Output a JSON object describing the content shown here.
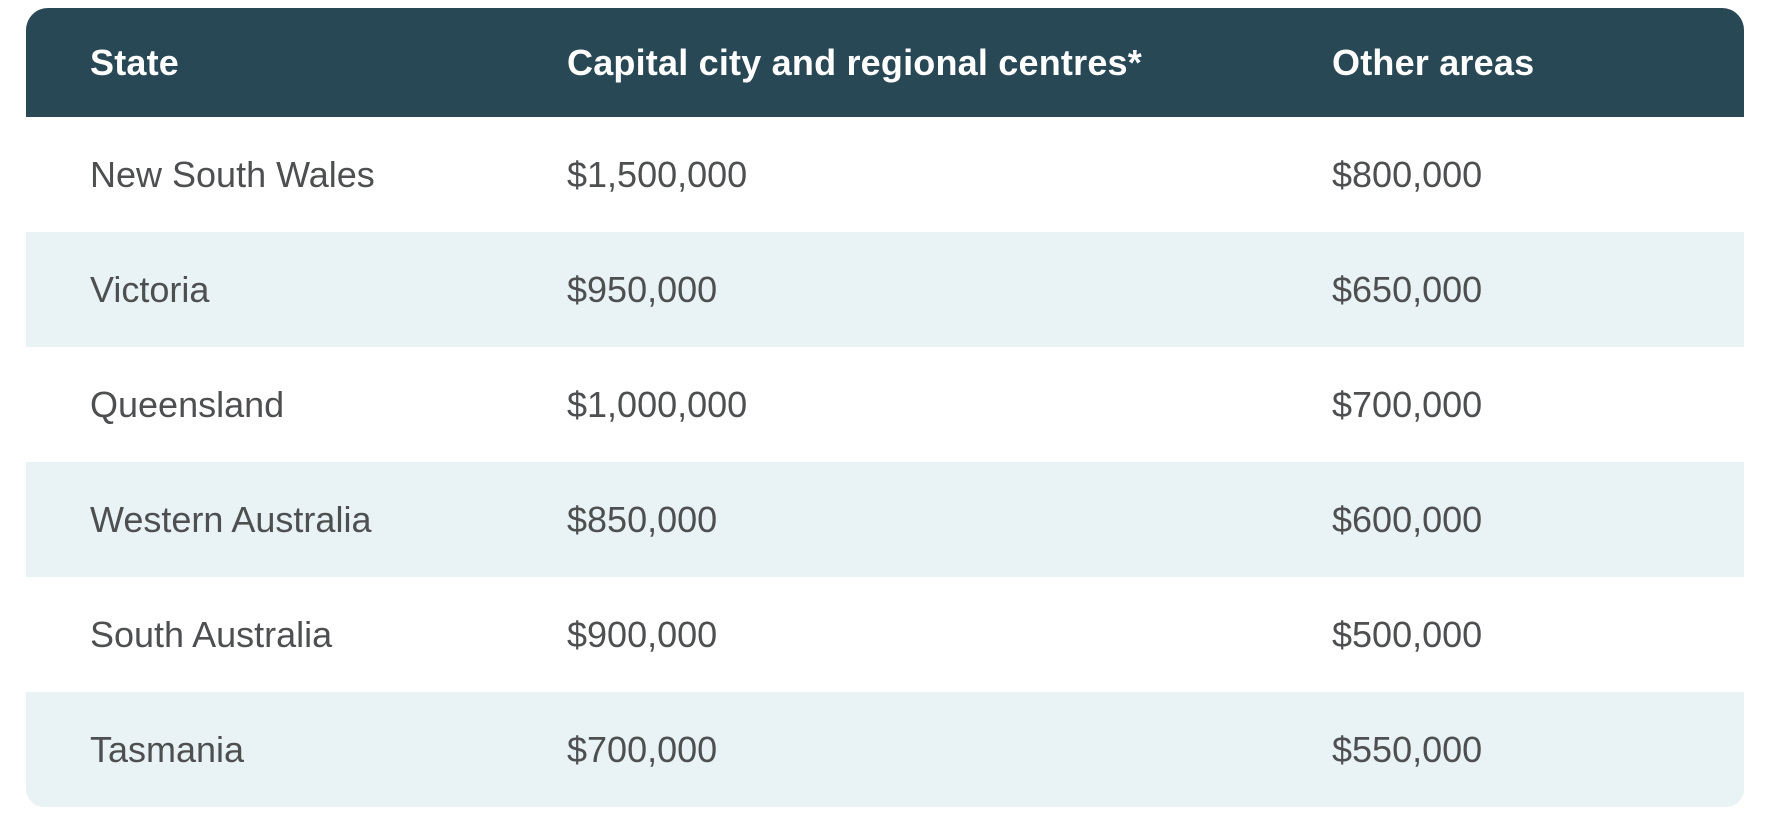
{
  "table": {
    "columns": [
      {
        "label": "State"
      },
      {
        "label": "Capital city and regional centres*"
      },
      {
        "label": "Other areas"
      }
    ],
    "rows": [
      {
        "state": "New South Wales",
        "capital": "$1,500,000",
        "other": "$800,000"
      },
      {
        "state": "Victoria",
        "capital": "$950,000",
        "other": "$650,000"
      },
      {
        "state": "Queensland",
        "capital": "$1,000,000",
        "other": "$700,000"
      },
      {
        "state": "Western Australia",
        "capital": "$850,000",
        "other": "$600,000"
      },
      {
        "state": "South Australia",
        "capital": "$900,000",
        "other": "$500,000"
      },
      {
        "state": "Tasmania",
        "capital": "$700,000",
        "other": "$550,000"
      }
    ]
  },
  "colors": {
    "header_bg": "#294856",
    "header_text": "#ffffff",
    "stripe_bg": "#e9f2f4",
    "row_bg": "#ffffff",
    "cell_text": "#4d4f50",
    "page_bg": "#ffffff"
  },
  "chart_data": {
    "type": "table",
    "columns": [
      "State",
      "Capital city and regional centres*",
      "Other areas"
    ],
    "rows": [
      [
        "New South Wales",
        "$1,500,000",
        "$800,000"
      ],
      [
        "Victoria",
        "$950,000",
        "$650,000"
      ],
      [
        "Queensland",
        "$1,000,000",
        "$700,000"
      ],
      [
        "Western Australia",
        "$850,000",
        "$600,000"
      ],
      [
        "South Australia",
        "$900,000",
        "$500,000"
      ],
      [
        "Tasmania",
        "$700,000",
        "$550,000"
      ]
    ],
    "layout_hints": {
      "striped_rows": true,
      "stripe_pattern": "even rows shaded",
      "header_style": "dark teal background, bold white text, rounded top corners"
    }
  }
}
